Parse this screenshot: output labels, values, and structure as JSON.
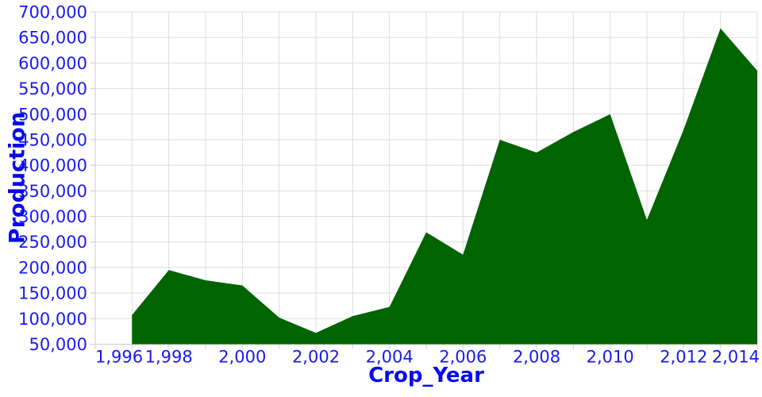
{
  "chart_data": {
    "type": "area",
    "title": "",
    "xlabel": "Crop_Year",
    "ylabel": "Production",
    "x": [
      1997,
      1998,
      1999,
      2000,
      2001,
      2002,
      2003,
      2004,
      2005,
      2006,
      2007,
      2008,
      2009,
      2010,
      2011,
      2012,
      2013,
      2014
    ],
    "values": [
      107000,
      195000,
      175000,
      165000,
      102000,
      72000,
      105000,
      123000,
      269000,
      225000,
      450000,
      425000,
      465000,
      500000,
      293000,
      470000,
      668000,
      585000
    ],
    "xlim": [
      1996,
      2014
    ],
    "ylim": [
      50000,
      700000
    ],
    "x_grid_step": 1,
    "x_label_step": 2,
    "y_tick_step": 50000,
    "x_tick_labels": [
      "1,996",
      "1,998",
      "2,000",
      "2,002",
      "2,004",
      "2,006",
      "2,008",
      "2,010",
      "2,012",
      "2,014"
    ],
    "y_tick_labels": [
      "50,000",
      "100,000",
      "150,000",
      "200,000",
      "250,000",
      "300,000",
      "350,000",
      "400,000",
      "450,000",
      "500,000",
      "550,000",
      "600,000",
      "650,000",
      "700,000"
    ],
    "grid": true,
    "legend": "none",
    "colors": {
      "area_fill": "#006400",
      "tick_label": "#1a1af0",
      "axis_title": "#0808f0",
      "gridline": "#dddddd",
      "axis_line": "#cccccc"
    }
  }
}
